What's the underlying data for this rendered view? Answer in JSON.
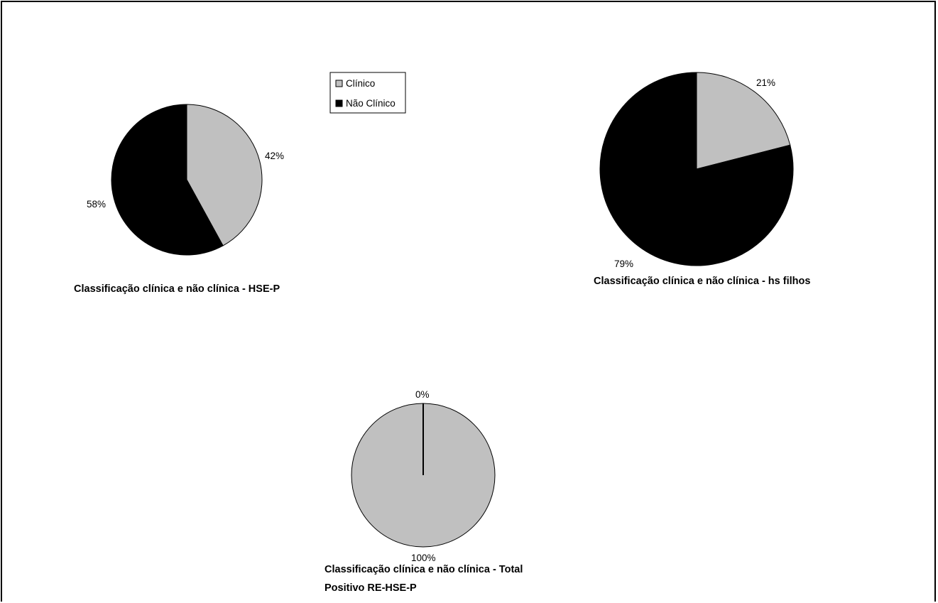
{
  "colors": {
    "clinico": "#c0c0c0",
    "nao_clinico": "#000000",
    "outline": "#000000"
  },
  "legend": {
    "placement": "top",
    "items": [
      {
        "label": "Clínico",
        "color": "#c0c0c0"
      },
      {
        "label": "Não Clínico",
        "color": "#000000"
      }
    ]
  },
  "chart_data": [
    {
      "type": "pie",
      "title": "Classificação clínica e não clínica - HSE-P",
      "categories": [
        "Clínico",
        "Não Clínico"
      ],
      "values": [
        42,
        58
      ],
      "labels": [
        "42%",
        "58%"
      ]
    },
    {
      "type": "pie",
      "title": "Classificação clínica e não clínica - hs filhos",
      "categories": [
        "Clínico",
        "Não Clínico"
      ],
      "values": [
        21,
        79
      ],
      "labels": [
        "21%",
        "79%"
      ]
    },
    {
      "type": "pie",
      "title_lines": [
        "Classificação clínica e não clínica - Total",
        "Positivo RE-HSE-P"
      ],
      "categories": [
        "Clínico",
        "Não Clínico"
      ],
      "values": [
        100,
        0
      ],
      "labels": [
        "100%",
        "0%"
      ]
    }
  ]
}
